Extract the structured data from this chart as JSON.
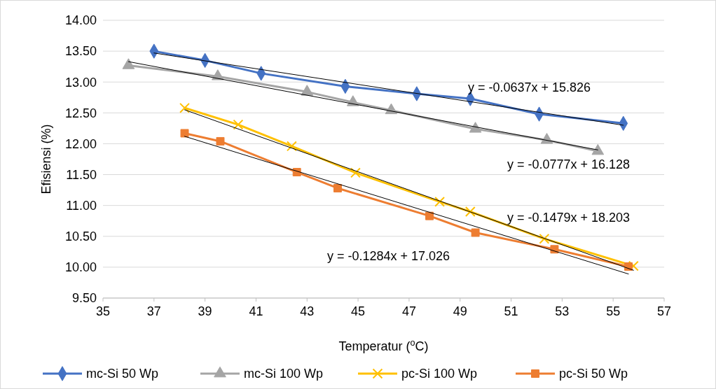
{
  "chart_data": {
    "type": "line",
    "xlabel": "Temperatur ($^{o}$C)",
    "ylabel": "Efisiensi (%)",
    "xlim": [
      35,
      57
    ],
    "xticks": [
      35,
      37,
      39,
      41,
      43,
      45,
      47,
      49,
      51,
      53,
      55,
      57
    ],
    "ylim": [
      9.5,
      14
    ],
    "yticks": [
      {
        "value": 9.5,
        "label": "9.50"
      },
      {
        "value": 10,
        "label": "10.00"
      },
      {
        "value": 10.5,
        "label": "10.50"
      },
      {
        "value": 11,
        "label": "11.00"
      },
      {
        "value": 11.5,
        "label": "11.50"
      },
      {
        "value": 12,
        "label": "12.00"
      },
      {
        "value": 12.5,
        "label": "12.50"
      },
      {
        "value": 13,
        "label": "13.00"
      },
      {
        "value": 13.5,
        "label": "13.50"
      },
      {
        "value": 14,
        "label": "14.00"
      }
    ],
    "grid": "y",
    "legend": "bottom",
    "series": [
      {
        "name": "mc-Si 50 Wp",
        "color": "#4472c4",
        "marker": "diamond",
        "x": [
          37.0,
          39.0,
          41.2,
          44.5,
          47.3,
          49.4,
          52.1,
          55.4
        ],
        "values": [
          13.5,
          13.35,
          13.14,
          12.93,
          12.81,
          12.73,
          12.48,
          12.33
        ]
      },
      {
        "name": "mc-Si 100 Wp",
        "color": "#a5a5a5",
        "marker": "triangle",
        "x": [
          36.0,
          39.5,
          43.0,
          44.8,
          46.3,
          49.6,
          52.4,
          54.4
        ],
        "values": [
          13.27,
          13.09,
          12.84,
          12.67,
          12.54,
          12.24,
          12.06,
          11.88
        ]
      },
      {
        "name": "pc-Si 100 Wp",
        "color": "#ffc000",
        "marker": "cross",
        "x": [
          38.2,
          40.3,
          42.4,
          44.9,
          48.2,
          49.4,
          52.3,
          55.8
        ],
        "values": [
          12.58,
          12.31,
          11.96,
          11.53,
          11.06,
          10.9,
          10.46,
          10.02
        ]
      },
      {
        "name": "pc-Si 50 Wp",
        "color": "#ed7d31",
        "marker": "square",
        "x": [
          38.2,
          39.6,
          42.6,
          44.2,
          47.8,
          49.6,
          52.7,
          55.6
        ],
        "values": [
          12.17,
          12.04,
          11.54,
          11.28,
          10.83,
          10.56,
          10.29,
          10.01
        ]
      },
      {
        "color": "#000000",
        "marker": "none",
        "x": [
          37.0,
          55.4
        ],
        "values": [
          13.47,
          12.3
        ]
      },
      {
        "color": "#000000",
        "marker": "none",
        "x": [
          36.0,
          54.4
        ],
        "values": [
          13.33,
          11.9
        ]
      },
      {
        "color": "#000000",
        "marker": "none",
        "x": [
          38.2,
          55.8
        ],
        "values": [
          12.55,
          9.95
        ]
      },
      {
        "color": "#000000",
        "marker": "none",
        "x": [
          38.2,
          55.6
        ],
        "values": [
          12.12,
          9.89
        ]
      }
    ],
    "annotations": [
      "y = -0.0637x + 15.826",
      "y = -0.0777x + 16.128",
      "y = -0.1479x + 18.203",
      "y = -0.1284x + 17.026"
    ]
  }
}
